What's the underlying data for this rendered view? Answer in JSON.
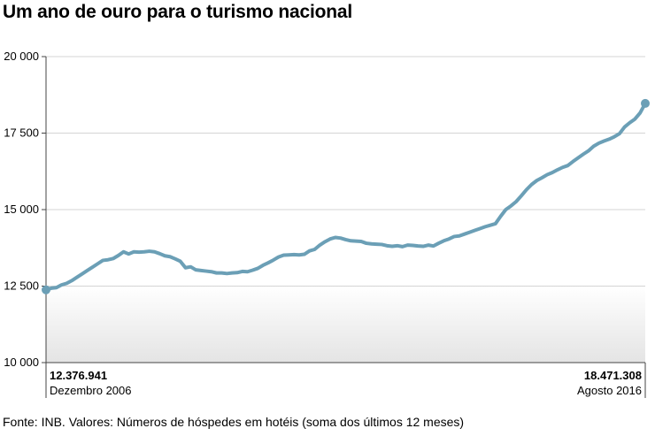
{
  "title": "Um ano de ouro para o turismo nacional",
  "source": "Fonte: INB. Valores: Números de hóspedes em hotéis (soma dos últimos 12 meses)",
  "colors": {
    "line": "#6b9fb6",
    "grid": "#d4d4d4",
    "axis": "#444444",
    "band_top": "#ffffff",
    "band_bottom": "#e4e4e4"
  },
  "chart_data": {
    "type": "line",
    "title": "Um ano de ouro para o turismo nacional",
    "xlabel": "",
    "ylabel": "",
    "ylim": [
      10000,
      20000
    ],
    "yticks": [
      10000,
      12500,
      15000,
      17500,
      20000
    ],
    "ytick_labels": [
      "10 000",
      "12 500",
      "15 000",
      "17 500",
      "20 000"
    ],
    "x_start": "Dezembro 2006",
    "x_end": "Agosto 2016",
    "grid": true,
    "shaded_band_below": 12500,
    "series": [
      {
        "name": "",
        "values": [
          12377,
          12430,
          12450,
          12540,
          12590,
          12680,
          12790,
          12900,
          13010,
          13120,
          13230,
          13340,
          13360,
          13400,
          13500,
          13620,
          13550,
          13620,
          13610,
          13620,
          13640,
          13620,
          13560,
          13490,
          13460,
          13390,
          13310,
          13100,
          13130,
          13030,
          13010,
          12990,
          12970,
          12930,
          12930,
          12910,
          12930,
          12940,
          12980,
          12970,
          13020,
          13080,
          13180,
          13260,
          13350,
          13450,
          13510,
          13520,
          13530,
          13520,
          13540,
          13650,
          13700,
          13840,
          13950,
          14040,
          14090,
          14070,
          14020,
          13980,
          13970,
          13960,
          13900,
          13880,
          13870,
          13860,
          13820,
          13800,
          13820,
          13790,
          13840,
          13830,
          13810,
          13800,
          13840,
          13810,
          13900,
          13980,
          14040,
          14120,
          14140,
          14200,
          14260,
          14320,
          14380,
          14440,
          14490,
          14540,
          14780,
          15000,
          15120,
          15260,
          15450,
          15650,
          15820,
          15950,
          16040,
          16140,
          16210,
          16300,
          16380,
          16440,
          16570,
          16690,
          16810,
          16920,
          17070,
          17170,
          17240,
          17300,
          17380,
          17480,
          17700,
          17840,
          17960,
          18160,
          18471
        ]
      }
    ],
    "annotations": {
      "start_value": "12.376.941",
      "start_date": "Dezembro 2006",
      "end_value": "18.471.308",
      "end_date": "Agosto 2016"
    }
  }
}
